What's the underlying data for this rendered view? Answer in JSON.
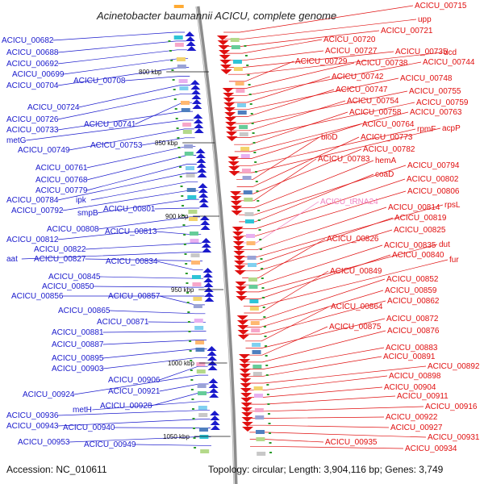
{
  "title": "Acinetobacter baumannii ACICU, complete genome",
  "accession": "Accession: NC_010611",
  "summary": "Topology: circular; Length: 3,904,116 bp; Genes: 3,749",
  "colors": {
    "forward": "#1a1acc",
    "reverse": "#e01010",
    "rna": "#f080c0",
    "backbone": "#8c8c8c"
  },
  "kbp_marks": [
    {
      "label": "800 kbp"
    },
    {
      "label": "850 kbp"
    },
    {
      "label": "900 kbp"
    },
    {
      "label": "950 kbp"
    },
    {
      "label": "1000 kbp"
    },
    {
      "label": "1050 kbp"
    }
  ],
  "left_labels": [
    "ACICU_00682",
    "ACICU_00688",
    "ACICU_00692",
    "ACICU_00699",
    "ACICU_00704",
    "ACICU_00708",
    "ACICU_00724",
    "ACICU_00726",
    "ACICU_00741",
    "ACICU_00733",
    "metG",
    "ACICU_00749",
    "ACICU_00753",
    "ACICU_00761",
    "ACICU_00768",
    "ACICU_00779",
    "ACICU_00784",
    "ipk",
    "ACICU_00792",
    "smpB",
    "ACICU_00801",
    "ACICU_00808",
    "ACICU_00812",
    "ACICU_00813",
    "ACICU_00822",
    "aat",
    "ACICU_00827",
    "ACICU_00834",
    "ACICU_00845",
    "ACICU_00850",
    "ACICU_00856",
    "ACICU_00857",
    "ACICU_00865",
    "ACICU_00871",
    "ACICU_00881",
    "ACICU_00887",
    "ACICU_00895",
    "ACICU_00903",
    "ACICU_00906",
    "ACICU_00924",
    "ACICU_00921",
    "ACICU_00928",
    "metH",
    "ACICU_00936",
    "ACICU_00943",
    "ACICU_00940",
    "ACICU_00953",
    "ACICU_00949"
  ],
  "right_labels": [
    "ACICU_00715",
    "upp",
    "ACICU_00721",
    "ACICU_00720",
    "ACICU_00727",
    "ACICU_00735",
    "dcd",
    "ACICU_00729",
    "ACICU_00738",
    "ACICU_00744",
    "ACICU_00742",
    "ACICU_00748",
    "ACICU_00747",
    "ACICU_00755",
    "ACICU_00754",
    "ACICU_00759",
    "ACICU_00758",
    "ACICU_00763",
    "ACICU_00764",
    "rpmF",
    "acpP",
    "bioD",
    "ACICU_00773",
    "ACICU_00782",
    "ACICU_00783",
    "hemA",
    "ACICU_00794",
    "coaD",
    "ACICU_00802",
    "ACICU_00806",
    "ACICU_tRNA24",
    "ACICU_00814",
    "rpsL",
    "ACICU_00819",
    "ACICU_00825",
    "ACICU_00826",
    "ACICU_00835",
    "dut",
    "ACICU_00840",
    "fur",
    "ACICU_00849",
    "ACICU_00852",
    "ACICU_00859",
    "ACICU_00862",
    "ACICU_00864",
    "ACICU_00872",
    "ACICU_00875",
    "ACICU_00876",
    "ACICU_00883",
    "ACICU_00891",
    "ACICU_00892",
    "ACICU_00898",
    "ACICU_00904",
    "ACICU_00911",
    "ACICU_00916",
    "ACICU_00922",
    "ACICU_00927",
    "ACICU_00931",
    "ACICU_00935",
    "ACICU_00934"
  ]
}
